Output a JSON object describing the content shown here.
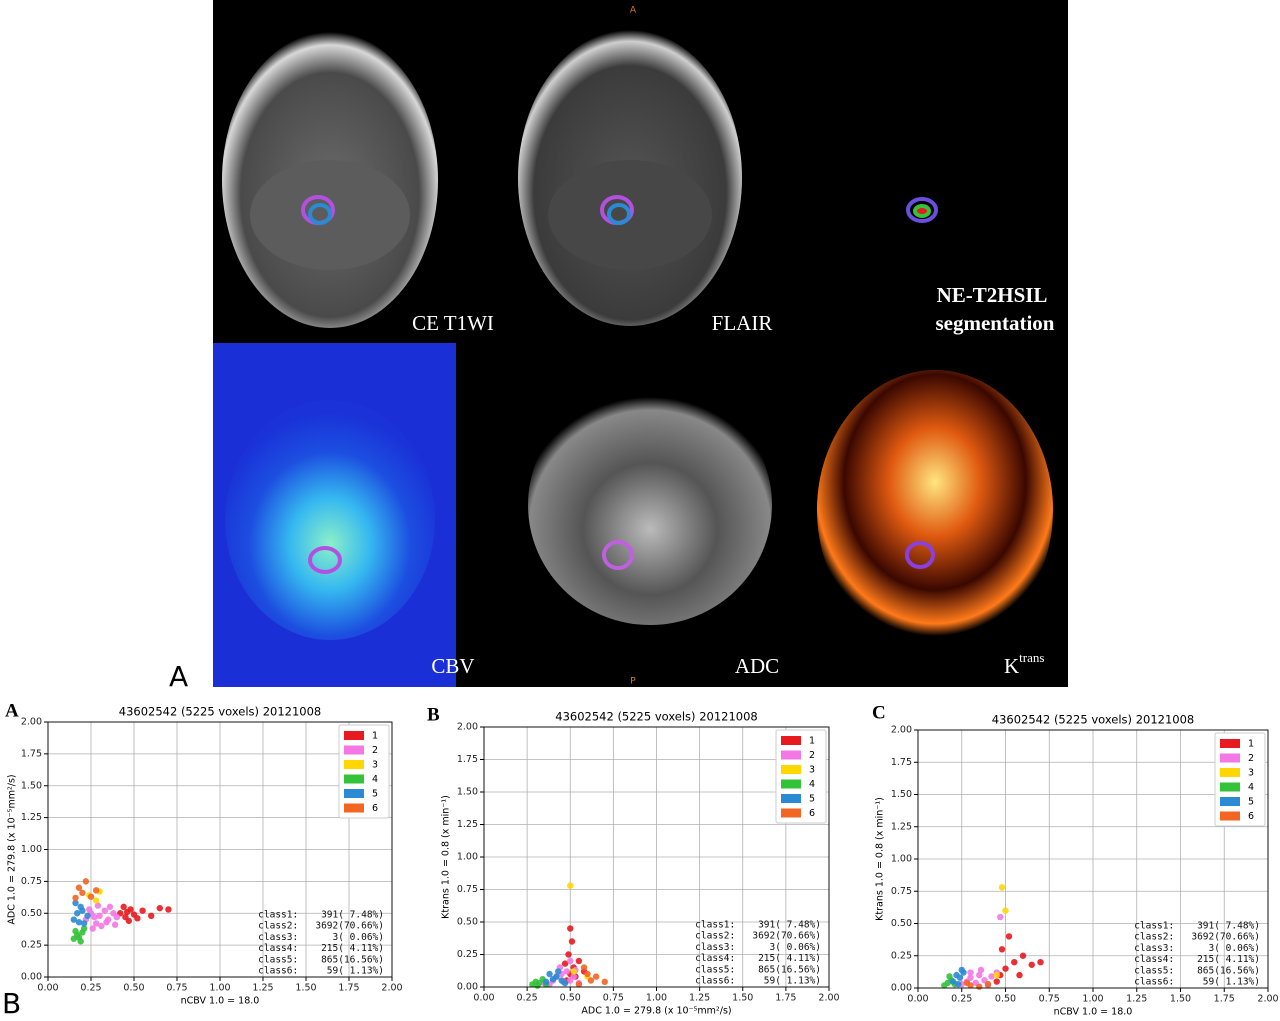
{
  "figure": {
    "panel_labels": [
      "A",
      "B"
    ]
  },
  "images": [
    {
      "label": "CE T1WI"
    },
    {
      "label": "FLAIR"
    },
    {
      "label": [
        "NE-T2HSIL",
        "segmentation"
      ]
    },
    {
      "label": "CBV"
    },
    {
      "label": "ADC"
    },
    {
      "label": "K",
      "superscript": "trans"
    }
  ],
  "orientation": {
    "top": "A",
    "bottom": "P"
  },
  "chart_data": [
    {
      "type": "scatter",
      "panel": "A",
      "title": "43602542 (5225 voxels) 20121008",
      "x_label": "nCBV 1.0 = 18.0",
      "y_label": "ADC 1.0 = 279.8 (x 10⁻⁵mm²/s)",
      "xlim": [
        0,
        2
      ],
      "ylim": [
        0,
        2
      ],
      "grid": true,
      "legend": "upper right",
      "xticks": [
        {
          "value": 0,
          "label": "0.00"
        },
        {
          "value": 0.25,
          "label": "0.25"
        },
        {
          "value": 0.5,
          "label": "0.50"
        },
        {
          "value": 0.75,
          "label": "0.75"
        },
        {
          "value": 1,
          "label": "1.00"
        },
        {
          "value": 1.25,
          "label": "1.25"
        },
        {
          "value": 1.5,
          "label": "1.50"
        },
        {
          "value": 1.75,
          "label": "1.75"
        },
        {
          "value": 2,
          "label": "2.00"
        }
      ],
      "yticks": [
        {
          "value": 0,
          "label": "0.00"
        },
        {
          "value": 0.25,
          "label": "0.25"
        },
        {
          "value": 0.5,
          "label": "0.50"
        },
        {
          "value": 0.75,
          "label": "0.75"
        },
        {
          "value": 1,
          "label": "1.00"
        },
        {
          "value": 1.25,
          "label": "1.25"
        },
        {
          "value": 1.5,
          "label": "1.50"
        },
        {
          "value": 1.75,
          "label": "1.75"
        },
        {
          "value": 2,
          "label": "2.00"
        }
      ],
      "series": [
        {
          "name": "1",
          "color": "#e8191f",
          "x": [
            0.42,
            0.45,
            0.48,
            0.5,
            0.44,
            0.47,
            0.55,
            0.6,
            0.65,
            0.7,
            0.46,
            0.52
          ],
          "values": [
            0.5,
            0.47,
            0.53,
            0.49,
            0.55,
            0.44,
            0.52,
            0.48,
            0.54,
            0.53,
            0.51,
            0.46
          ]
        },
        {
          "name": "2",
          "color": "#f477e6",
          "x": [
            0.22,
            0.25,
            0.28,
            0.3,
            0.33,
            0.35,
            0.38,
            0.4,
            0.26,
            0.31,
            0.36,
            0.29,
            0.24,
            0.34,
            0.39,
            0.27
          ],
          "values": [
            0.45,
            0.5,
            0.42,
            0.48,
            0.52,
            0.45,
            0.5,
            0.47,
            0.38,
            0.4,
            0.55,
            0.56,
            0.53,
            0.43,
            0.41,
            0.47
          ]
        },
        {
          "name": "3",
          "color": "#ffd700",
          "x": [
            0.24,
            0.28,
            0.3
          ],
          "values": [
            0.64,
            0.6,
            0.67
          ]
        },
        {
          "name": "4",
          "color": "#33c23a",
          "x": [
            0.15,
            0.17,
            0.19,
            0.2,
            0.16,
            0.18,
            0.21
          ],
          "values": [
            0.3,
            0.33,
            0.28,
            0.35,
            0.36,
            0.31,
            0.38
          ]
        },
        {
          "name": "5",
          "color": "#2a8ad4",
          "x": [
            0.15,
            0.17,
            0.19,
            0.21,
            0.23,
            0.16,
            0.2,
            0.18
          ],
          "values": [
            0.45,
            0.5,
            0.55,
            0.42,
            0.48,
            0.58,
            0.52,
            0.43
          ]
        },
        {
          "name": "6",
          "color": "#f26522",
          "x": [
            0.16,
            0.18,
            0.2,
            0.22,
            0.25,
            0.28
          ],
          "values": [
            0.62,
            0.7,
            0.66,
            0.75,
            0.63,
            0.68
          ]
        }
      ],
      "stats": [
        "class1:    391( 7.48%)",
        "class2:   3692(70.66%)",
        "class3:      3( 0.06%)",
        "class4:    215( 4.11%)",
        "class5:    865(16.56%)",
        "class6:     59( 1.13%)"
      ]
    },
    {
      "type": "scatter",
      "panel": "B",
      "title": "43602542 (5225 voxels) 20121008",
      "x_label": "ADC 1.0 = 279.8 (x 10⁻⁵mm²/s)",
      "y_label": "Ktrans 1.0 =  0.8 (x min⁻¹)",
      "xlim": [
        0,
        2
      ],
      "ylim": [
        0,
        2
      ],
      "grid": true,
      "legend": "upper right",
      "xticks": [
        {
          "value": 0,
          "label": "0.00"
        },
        {
          "value": 0.25,
          "label": "0.25"
        },
        {
          "value": 0.5,
          "label": "0.50"
        },
        {
          "value": 0.75,
          "label": "0.75"
        },
        {
          "value": 1,
          "label": "1.00"
        },
        {
          "value": 1.25,
          "label": "1.25"
        },
        {
          "value": 1.5,
          "label": "1.50"
        },
        {
          "value": 1.75,
          "label": "1.75"
        },
        {
          "value": 2,
          "label": "2.00"
        }
      ],
      "yticks": [
        {
          "value": 0,
          "label": "0.00"
        },
        {
          "value": 0.25,
          "label": "0.25"
        },
        {
          "value": 0.5,
          "label": "0.50"
        },
        {
          "value": 0.75,
          "label": "0.75"
        },
        {
          "value": 1,
          "label": "1.00"
        },
        {
          "value": 1.25,
          "label": "1.25"
        },
        {
          "value": 1.5,
          "label": "1.50"
        },
        {
          "value": 1.75,
          "label": "1.75"
        },
        {
          "value": 2,
          "label": "2.00"
        }
      ],
      "series": [
        {
          "name": "1",
          "color": "#e8191f",
          "x": [
            0.48,
            0.5,
            0.52,
            0.49,
            0.51,
            0.55,
            0.5,
            0.53,
            0.47,
            0.58
          ],
          "values": [
            0.05,
            0.1,
            0.15,
            0.25,
            0.35,
            0.2,
            0.45,
            0.08,
            0.18,
            0.12
          ]
        },
        {
          "name": "2",
          "color": "#f477e6",
          "x": [
            0.35,
            0.4,
            0.42,
            0.45,
            0.48,
            0.5,
            0.52,
            0.55,
            0.44,
            0.38,
            0.5,
            0.46,
            0.53
          ],
          "values": [
            0.03,
            0.05,
            0.08,
            0.1,
            0.12,
            0.05,
            0.08,
            0.03,
            0.15,
            0.02,
            0.2,
            0.04,
            0.13
          ]
        },
        {
          "name": "3",
          "color": "#ffd700",
          "x": [
            0.52,
            0.6,
            0.5
          ],
          "values": [
            0.12,
            0.08,
            0.78
          ]
        },
        {
          "name": "4",
          "color": "#33c23a",
          "x": [
            0.28,
            0.3,
            0.32,
            0.34,
            0.36,
            0.31
          ],
          "values": [
            0.02,
            0.04,
            0.03,
            0.06,
            0.02,
            0.01
          ]
        },
        {
          "name": "5",
          "color": "#2a8ad4",
          "x": [
            0.36,
            0.4,
            0.42,
            0.45,
            0.38,
            0.43,
            0.47
          ],
          "values": [
            0.04,
            0.06,
            0.08,
            0.05,
            0.1,
            0.12,
            0.03
          ]
        },
        {
          "name": "6",
          "color": "#f26522",
          "x": [
            0.55,
            0.6,
            0.62,
            0.65,
            0.58,
            0.7
          ],
          "values": [
            0.02,
            0.1,
            0.05,
            0.08,
            0.15,
            0.04
          ]
        }
      ],
      "stats": [
        "class1:    391( 7.48%)",
        "class2:   3692(70.66%)",
        "class3:      3( 0.06%)",
        "class4:    215( 4.11%)",
        "class5:    865(16.56%)",
        "class6:     59( 1.13%)"
      ]
    },
    {
      "type": "scatter",
      "panel": "C",
      "title": "43602542 (5225 voxels) 20121008",
      "x_label": "nCBV 1.0 = 18.0",
      "y_label": "Ktrans 1.0 =  0.8 (x min⁻¹)",
      "xlim": [
        0,
        2
      ],
      "ylim": [
        0,
        2
      ],
      "grid": true,
      "legend": "upper right",
      "xticks": [
        {
          "value": 0,
          "label": "0.00"
        },
        {
          "value": 0.25,
          "label": "0.25"
        },
        {
          "value": 0.5,
          "label": "0.50"
        },
        {
          "value": 0.75,
          "label": "0.75"
        },
        {
          "value": 1,
          "label": "1.00"
        },
        {
          "value": 1.25,
          "label": "1.25"
        },
        {
          "value": 1.5,
          "label": "1.50"
        },
        {
          "value": 1.75,
          "label": "1.75"
        },
        {
          "value": 2,
          "label": "2.00"
        }
      ],
      "yticks": [
        {
          "value": 0,
          "label": "0.00"
        },
        {
          "value": 0.25,
          "label": "0.25"
        },
        {
          "value": 0.5,
          "label": "0.50"
        },
        {
          "value": 0.75,
          "label": "0.75"
        },
        {
          "value": 1,
          "label": "1.00"
        },
        {
          "value": 1.25,
          "label": "1.25"
        },
        {
          "value": 1.5,
          "label": "1.50"
        },
        {
          "value": 1.75,
          "label": "1.75"
        },
        {
          "value": 2,
          "label": "2.00"
        }
      ],
      "series": [
        {
          "name": "1",
          "color": "#e8191f",
          "x": [
            0.45,
            0.47,
            0.5,
            0.48,
            0.55,
            0.6,
            0.65,
            0.7,
            0.52,
            0.58
          ],
          "values": [
            0.05,
            0.1,
            0.15,
            0.3,
            0.2,
            0.25,
            0.18,
            0.2,
            0.4,
            0.1
          ]
        },
        {
          "name": "2",
          "color": "#f477e6",
          "x": [
            0.25,
            0.28,
            0.3,
            0.33,
            0.35,
            0.38,
            0.4,
            0.42,
            0.45,
            0.3,
            0.36,
            0.47
          ],
          "values": [
            0.03,
            0.05,
            0.08,
            0.04,
            0.1,
            0.06,
            0.02,
            0.09,
            0.12,
            0.12,
            0.14,
            0.55
          ]
        },
        {
          "name": "3",
          "color": "#ffd700",
          "x": [
            0.45,
            0.48,
            0.5
          ],
          "values": [
            0.1,
            0.78,
            0.6
          ]
        },
        {
          "name": "4",
          "color": "#33c23a",
          "x": [
            0.15,
            0.17,
            0.19,
            0.21,
            0.18
          ],
          "values": [
            0.02,
            0.04,
            0.06,
            0.03,
            0.09
          ]
        },
        {
          "name": "5",
          "color": "#2a8ad4",
          "x": [
            0.2,
            0.22,
            0.24,
            0.26,
            0.23,
            0.25
          ],
          "values": [
            0.05,
            0.1,
            0.08,
            0.12,
            0.03,
            0.14
          ]
        },
        {
          "name": "6",
          "color": "#f26522",
          "x": [
            0.3,
            0.35,
            0.4,
            0.28
          ],
          "values": [
            0.02,
            0.01,
            0.03,
            0.04
          ]
        }
      ],
      "stats": [
        "class1:    391( 7.48%)",
        "class2:   3692(70.66%)",
        "class3:      3( 0.06%)",
        "class4:    215( 4.11%)",
        "class5:    865(16.56%)",
        "class6:     59( 1.13%)"
      ]
    }
  ]
}
